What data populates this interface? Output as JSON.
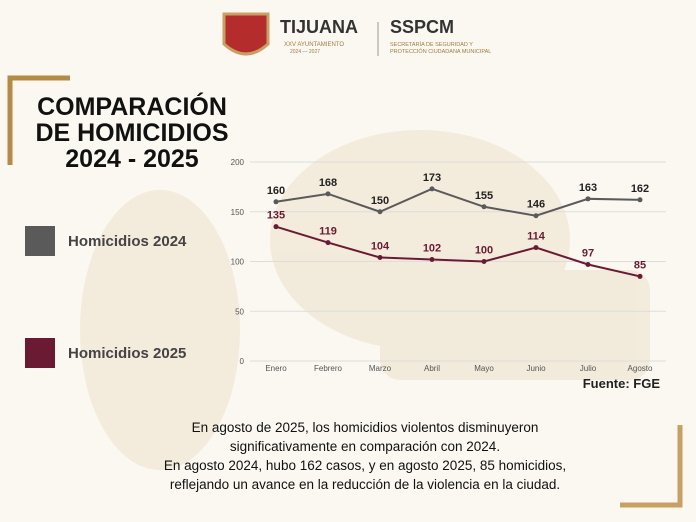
{
  "header": {
    "city": "TIJUANA",
    "council": "XXV AYUNTAMIENTO",
    "term": "2024 — 2027",
    "agency": "SSPCM",
    "agency_lines": [
      "SECRETARÍA DE SEGURIDAD Y",
      "PROTECCIÓN CIUDADANA MUNICIPAL"
    ]
  },
  "chart_data": {
    "type": "line",
    "title": "COMPARACIÓN\nDE HOMICIDIOS\n2024 - 2025",
    "categories": [
      "Enero",
      "Febrero",
      "Marzo",
      "Abril",
      "Mayo",
      "Junio",
      "Julio",
      "Agosto"
    ],
    "series": [
      {
        "name": "Homicidios 2024",
        "color": "#5a5a5a",
        "values": [
          160,
          168,
          150,
          173,
          155,
          146,
          163,
          162
        ]
      },
      {
        "name": "Homicidios 2025",
        "color": "#6b1a33",
        "values": [
          135,
          119,
          104,
          102,
          100,
          114,
          97,
          85
        ]
      }
    ],
    "ylim": [
      0,
      200
    ],
    "yticks": [
      0,
      50,
      100,
      150,
      200
    ],
    "grid": true,
    "source": "Fuente: FGE"
  },
  "note": [
    "En agosto de 2025, los homicidios violentos disminuyeron",
    "significativamente en comparación con 2024.",
    "En agosto 2024, hubo 162 casos, y en agosto 2025, 85 homicidios,",
    "reflejando un avance en la reducción de la violencia en la ciudad."
  ]
}
